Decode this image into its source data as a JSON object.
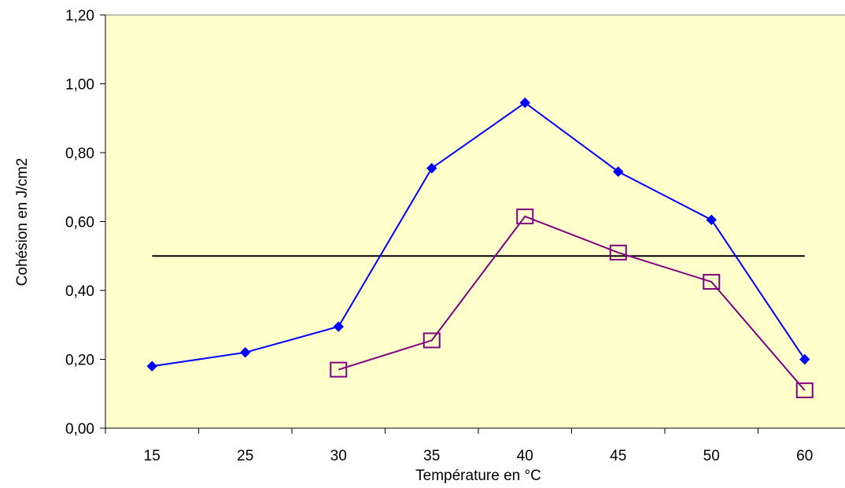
{
  "chart_data": {
    "type": "line",
    "title": "",
    "xlabel": "Température en °C",
    "ylabel": "Cohésion en J/cm2",
    "categories": [
      "15",
      "25",
      "30",
      "35",
      "40",
      "45",
      "50",
      "60"
    ],
    "ylim": [
      0,
      1.2
    ],
    "yticks": [
      0,
      0.2,
      0.4,
      0.6,
      0.8,
      1.0,
      1.2
    ],
    "ytick_labels": [
      "0,00",
      "0,20",
      "0,40",
      "0,60",
      "0,80",
      "1,00",
      "1,20"
    ],
    "grid": false,
    "legend": "none",
    "plot_background": "#FFFFCC",
    "series": [
      {
        "marker": "diamond",
        "color": "#0000FF",
        "values": [
          0.18,
          0.22,
          0.295,
          0.755,
          0.945,
          0.745,
          0.605,
          0.2
        ]
      },
      {
        "marker": "square-open",
        "color": "#800080",
        "values": [
          null,
          null,
          0.17,
          0.255,
          0.615,
          0.51,
          0.425,
          0.11
        ]
      },
      {
        "marker": "none",
        "color": "#000000",
        "values": [
          0.5,
          0.5,
          0.5,
          0.5,
          0.5,
          0.5,
          0.5,
          0.5
        ]
      }
    ]
  }
}
